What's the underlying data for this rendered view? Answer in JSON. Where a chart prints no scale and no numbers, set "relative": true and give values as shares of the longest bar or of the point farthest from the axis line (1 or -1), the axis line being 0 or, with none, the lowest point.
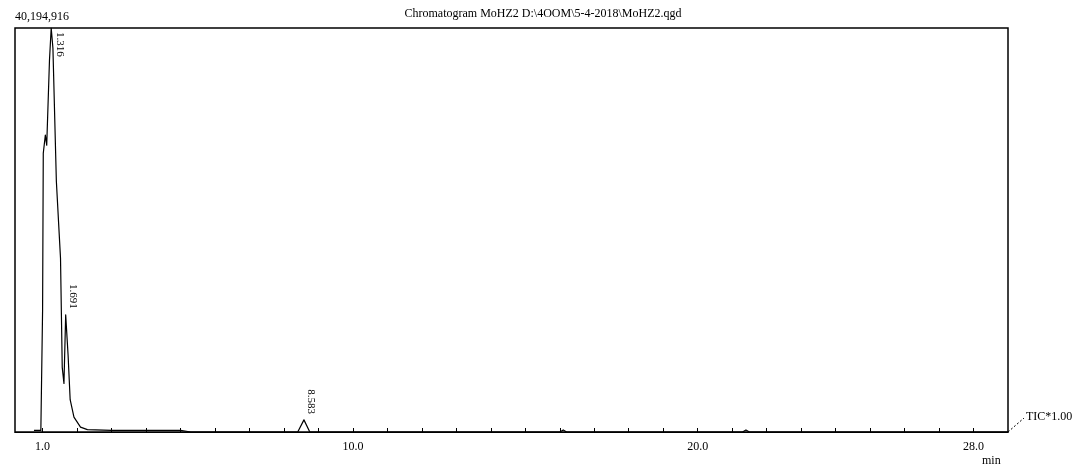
{
  "chart_data": {
    "type": "line",
    "title": "Chromatogram MoHZ2 D:\\4OOM\\5-4-2018\\MoHZ2.qgd",
    "xlabel": "min",
    "relative": true,
    "grid": false,
    "marker": "none",
    "line_style": "solid",
    "xlim": [
      0.2,
      29.0
    ],
    "xticks": [
      {
        "value": 1,
        "label": "1.0"
      },
      {
        "value": 2,
        "label": null
      },
      {
        "value": 3,
        "label": null
      },
      {
        "value": 4,
        "label": null
      },
      {
        "value": 5,
        "label": null
      },
      {
        "value": 6,
        "label": null
      },
      {
        "value": 7,
        "label": null
      },
      {
        "value": 8,
        "label": null
      },
      {
        "value": 9,
        "label": null
      },
      {
        "value": 10,
        "label": "10.0"
      },
      {
        "value": 11,
        "label": null
      },
      {
        "value": 12,
        "label": null
      },
      {
        "value": 13,
        "label": null
      },
      {
        "value": 14,
        "label": null
      },
      {
        "value": 15,
        "label": null
      },
      {
        "value": 16,
        "label": null
      },
      {
        "value": 17,
        "label": null
      },
      {
        "value": 18,
        "label": null
      },
      {
        "value": 19,
        "label": null
      },
      {
        "value": 20,
        "label": "20.0"
      },
      {
        "value": 21,
        "label": null
      },
      {
        "value": 22,
        "label": null
      },
      {
        "value": 23,
        "label": null
      },
      {
        "value": 24,
        "label": null
      },
      {
        "value": 25,
        "label": null
      },
      {
        "value": 26,
        "label": null
      },
      {
        "value": 27,
        "label": null
      },
      {
        "value": 28,
        "label": "28.0"
      }
    ],
    "series": [
      {
        "color": "#000000",
        "x": [
          0.75,
          0.95,
          1.0,
          1.02,
          1.08,
          1.12,
          1.2,
          1.25,
          1.3,
          1.4,
          1.52,
          1.57,
          1.62,
          1.67,
          1.74,
          1.8,
          1.91,
          2.1,
          2.3,
          3.0,
          4.0,
          5.0,
          5.3,
          8.4,
          8.58,
          8.75,
          16.0,
          16.1,
          16.2,
          21.3,
          21.4,
          21.5,
          29.0
        ],
        "values": [
          0.004,
          0.004,
          0.3,
          0.69,
          0.735,
          0.71,
          0.92,
          1.0,
          0.95,
          0.62,
          0.43,
          0.16,
          0.12,
          0.29,
          0.19,
          0.08,
          0.037,
          0.012,
          0.006,
          0.004,
          0.004,
          0.004,
          0.0,
          0.0,
          0.03,
          0.0,
          0.0,
          0.005,
          0.0,
          0.0,
          0.005,
          0.0,
          0.0
        ]
      }
    ],
    "annotations": [
      "40,194,916",
      "TIC*1.00",
      {
        "text": "1.316",
        "x": 1.316,
        "y": 1
      },
      {
        "text": "1.691",
        "x": 1.691,
        "y": 0.29
      },
      {
        "text": "8.583",
        "x": 8.583,
        "y": 0.03
      }
    ]
  }
}
